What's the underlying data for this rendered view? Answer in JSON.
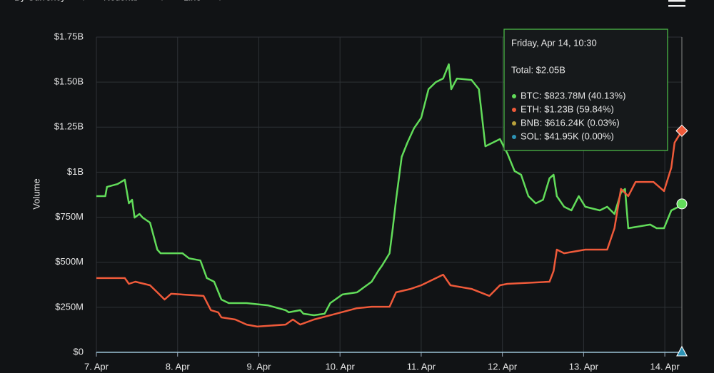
{
  "toolbar": {
    "items": [
      "By Currency",
      "Notional",
      "Line"
    ]
  },
  "chart_data": {
    "type": "line",
    "ylabel": "Volume",
    "xlim": [
      7,
      14.21
    ],
    "xticks": [
      {
        "value": 7,
        "label": "7. Apr"
      },
      {
        "value": 8,
        "label": "8. Apr"
      },
      {
        "value": 9,
        "label": "9. Apr"
      },
      {
        "value": 10,
        "label": "10. Apr"
      },
      {
        "value": 11,
        "label": "11. Apr"
      },
      {
        "value": 12,
        "label": "12. Apr"
      },
      {
        "value": 13,
        "label": "13. Apr"
      },
      {
        "value": 14,
        "label": "14. Apr"
      }
    ],
    "ylim": [
      0,
      1750
    ],
    "yticks": [
      {
        "value": 0,
        "label": "$0"
      },
      {
        "value": 250,
        "label": "$250M"
      },
      {
        "value": 500,
        "label": "$500M"
      },
      {
        "value": 750,
        "label": "$750M"
      },
      {
        "value": 1000,
        "label": "$1B"
      },
      {
        "value": 1250,
        "label": "$1.25B"
      },
      {
        "value": 1500,
        "label": "$1.50B"
      },
      {
        "value": 1750,
        "label": "$1.75B"
      }
    ],
    "grid": true,
    "series": [
      {
        "name": "BTC",
        "color": "#62dc5a",
        "marker": "circle",
        "x": [
          7.0,
          7.11,
          7.13,
          7.26,
          7.35,
          7.4,
          7.44,
          7.47,
          7.53,
          7.57,
          7.66,
          7.75,
          7.79,
          8.06,
          8.14,
          8.28,
          8.36,
          8.45,
          8.54,
          8.63,
          8.85,
          9.11,
          9.33,
          9.37,
          9.51,
          9.55,
          9.68,
          9.81,
          9.88,
          10.03,
          10.21,
          10.39,
          10.47,
          10.52,
          10.61,
          10.65,
          10.69,
          10.76,
          10.83,
          10.91,
          11.0,
          11.09,
          11.18,
          11.27,
          11.34,
          11.37,
          11.44,
          11.62,
          11.71,
          11.79,
          11.97,
          12.06,
          12.15,
          12.23,
          12.32,
          12.41,
          12.5,
          12.58,
          12.63,
          12.67,
          12.76,
          12.85,
          12.94,
          13.02,
          13.2,
          13.29,
          13.38,
          13.46,
          13.51,
          13.55,
          13.82,
          13.9,
          13.99,
          14.08,
          14.17,
          14.21
        ],
        "values": [
          867,
          867,
          918,
          934,
          958,
          827,
          847,
          748,
          768,
          748,
          720,
          570,
          550,
          550,
          522,
          510,
          412,
          392,
          293,
          273,
          273,
          261,
          234,
          222,
          234,
          214,
          206,
          214,
          273,
          321,
          333,
          392,
          451,
          483,
          550,
          689,
          847,
          1085,
          1164,
          1243,
          1302,
          1461,
          1500,
          1520,
          1599,
          1461,
          1520,
          1512,
          1461,
          1144,
          1184,
          1105,
          1006,
          986,
          867,
          827,
          847,
          966,
          986,
          867,
          808,
          788,
          867,
          808,
          788,
          808,
          768,
          887,
          907,
          689,
          709,
          689,
          689,
          788,
          808,
          823.78
        ]
      },
      {
        "name": "ETH",
        "color": "#ef5a3a",
        "marker": "diamond",
        "x": [
          7.0,
          7.35,
          7.4,
          7.48,
          7.66,
          7.75,
          7.84,
          7.92,
          8.32,
          8.41,
          8.5,
          8.54,
          8.71,
          8.85,
          8.98,
          9.33,
          9.42,
          9.51,
          9.68,
          9.95,
          10.21,
          10.39,
          10.61,
          10.69,
          10.87,
          11.0,
          11.27,
          11.36,
          11.62,
          11.84,
          11.97,
          12.06,
          12.58,
          12.63,
          12.67,
          12.76,
          13.02,
          13.29,
          13.38,
          13.46,
          13.55,
          13.64,
          13.86,
          13.99,
          14.08,
          14.12,
          14.21
        ],
        "values": [
          412,
          412,
          380,
          392,
          372,
          333,
          293,
          325,
          313,
          234,
          222,
          194,
          182,
          154,
          143,
          154,
          182,
          154,
          182,
          214,
          245,
          253,
          253,
          333,
          352,
          372,
          431,
          372,
          352,
          313,
          372,
          380,
          392,
          451,
          570,
          550,
          570,
          570,
          689,
          907,
          867,
          946,
          946,
          895,
          1025,
          1164,
          1230
        ]
      },
      {
        "name": "BNB",
        "color": "#b9a23c",
        "marker": "triangle",
        "x": [
          14.21
        ],
        "values": [
          0.61624
        ]
      },
      {
        "name": "SOL",
        "color": "#2d93b5",
        "marker": "triangle",
        "x": [
          14.21
        ],
        "values": [
          0.04195
        ]
      }
    ],
    "tooltip": {
      "title": "Friday, Apr 14, 10:30",
      "total": "Total: $2.05B",
      "items": [
        "BTC: $823.78M (40.13%)",
        "ETH: $1.23B (59.84%)",
        "BNB: $616.24K (0.03%)",
        "SOL: $41.95K (0.00%)"
      ]
    }
  }
}
